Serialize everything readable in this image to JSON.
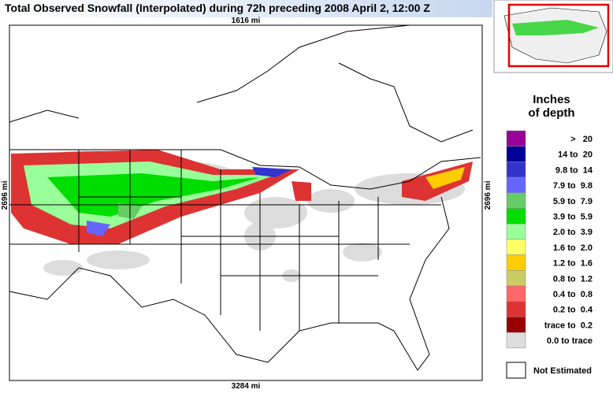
{
  "title": "Total Observed Snowfall (Interpolated) during 72h preceding 2008 April 2, 12:00 Z",
  "map": {
    "top_label": "1616 mi",
    "bottom_label": "3284 mi",
    "left_label": "2696 mi",
    "right_label": "2696 mi"
  },
  "legend": {
    "title_lines": [
      "Inches",
      "of depth"
    ],
    "entries": [
      {
        "label": ">   20",
        "color": "#990099"
      },
      {
        "label": "14 to  20",
        "color": "#000099"
      },
      {
        "label": "9.8 to  14",
        "color": "#3333cc"
      },
      {
        "label": "7.9 to  9.8",
        "color": "#6666ff"
      },
      {
        "label": "5.9 to  7.9",
        "color": "#66cc66"
      },
      {
        "label": "3.9 to  5.9",
        "color": "#00dd00"
      },
      {
        "label": "2.0 to  3.9",
        "color": "#99ff99"
      },
      {
        "label": "1.6 to  2.0",
        "color": "#ffff66"
      },
      {
        "label": "1.2 to  1.6",
        "color": "#ffcc00"
      },
      {
        "label": "0.8 to  1.2",
        "color": "#cccc66"
      },
      {
        "label": "0.4 to  0.8",
        "color": "#ff6666"
      },
      {
        "label": "0.2 to  0.4",
        "color": "#dd3333"
      },
      {
        "label": "trace to  0.2",
        "color": "#990000"
      },
      {
        "label": "0.0 to trace",
        "color": "#dddddd"
      }
    ],
    "not_estimated": {
      "label": "Not Estimated",
      "color": "#ffffff"
    }
  }
}
